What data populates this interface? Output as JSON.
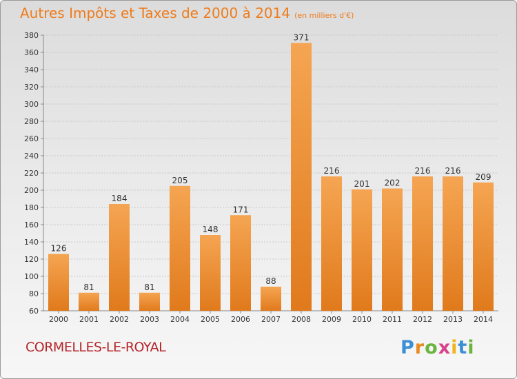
{
  "header": {
    "title": "Autres Impôts et Taxes de 2000 à 2014",
    "unit": "(en milliers d'€)"
  },
  "footer": {
    "city": "CORMELLES-LE-ROYAL",
    "brand": "Proxiti"
  },
  "colors": {
    "bar_top": "#f5a552",
    "bar_bottom": "#e07a1c",
    "title": "#ee7b1a",
    "city": "#b5252a"
  },
  "chart_data": {
    "type": "bar",
    "title": "Autres Impôts et Taxes de 2000 à 2014",
    "subtitle": "(en milliers d'€)",
    "categories": [
      "2000",
      "2001",
      "2002",
      "2003",
      "2004",
      "2005",
      "2006",
      "2007",
      "2008",
      "2009",
      "2010",
      "2011",
      "2012",
      "2013",
      "2014"
    ],
    "values": [
      126,
      81,
      184,
      81,
      205,
      148,
      171,
      88,
      371,
      216,
      201,
      202,
      216,
      216,
      209
    ],
    "ylim": [
      60,
      380
    ],
    "yticks": [
      60,
      80,
      100,
      120,
      140,
      160,
      180,
      200,
      220,
      240,
      260,
      280,
      300,
      320,
      340,
      360,
      380
    ],
    "grid": true,
    "legend": "none"
  }
}
